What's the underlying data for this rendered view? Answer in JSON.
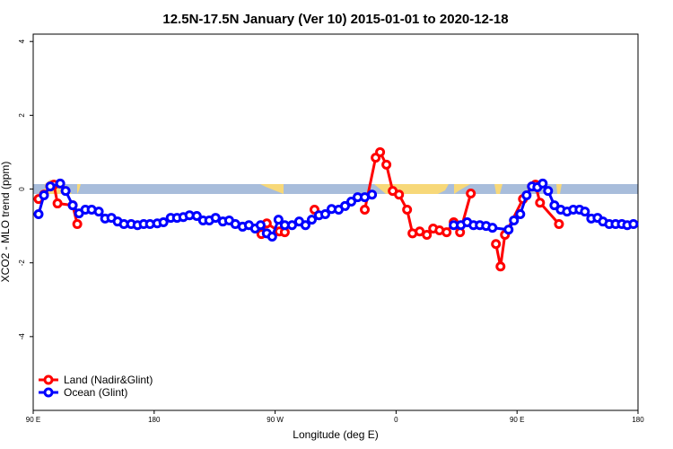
{
  "chart_data": {
    "type": "line",
    "title": "12.5N-17.5N January (Ver 10)   2015-01-01 to 2020-12-18",
    "xlabel": "Longitude (deg E)",
    "ylabel": "XCO2 - MLO trend (ppm)",
    "xlim": [
      90,
      540
    ],
    "ylim": [
      -6,
      4.2
    ],
    "xticks": [
      {
        "value": 90,
        "label": "90 E"
      },
      180,
      {
        "value": 270,
        "label": "90 W"
      },
      {
        "value": 360,
        "label": "0"
      },
      {
        "value": 450,
        "label": "90 E"
      },
      {
        "value": 540,
        "label": "180"
      }
    ],
    "yticks": [
      -4,
      -2,
      0,
      2,
      4
    ],
    "legend": "bottomleft",
    "series": [
      {
        "name": "Land (Nadir&Glint)",
        "color": "#ff0000",
        "x": [
          94.0,
          98.0,
          102.7,
          105.4,
          108.1,
          119.4,
          122.8,
          190,
          259.8,
          263.8,
          273.2,
          277.2,
          288,
          299.3,
          318,
          336.7,
          344.8,
          348.1,
          352.8,
          357.5,
          362.2,
          368.2,
          372.2,
          377.6,
          382.9,
          387.6,
          392.3,
          397.6,
          402.9,
          407.6,
          415.6,
          425,
          434.3,
          437.7,
          441.0,
          454.4,
          461.1,
          463.7,
          467.1,
          481.2
        ],
        "values": [
          -0.27,
          -0.15,
          0.07,
          0.12,
          -0.39,
          -0.44,
          -0.95,
          null,
          -1.22,
          -0.93,
          -1.15,
          -1.17,
          null,
          -0.56,
          null,
          -0.56,
          0.85,
          1.0,
          0.66,
          -0.05,
          -0.15,
          -0.56,
          -1.2,
          -1.15,
          -1.24,
          -1.07,
          -1.12,
          -1.17,
          -0.9,
          -1.17,
          -0.12,
          null,
          -1.49,
          -2.1,
          -1.24,
          -0.27,
          0.07,
          0.12,
          -0.37,
          -0.95
        ]
      },
      {
        "name": "Ocean (Glint)",
        "color": "#0000ff",
        "x": [
          94.0,
          98.0,
          102.7,
          110.1,
          114.1,
          119.4,
          124.1,
          128.8,
          133.5,
          138.8,
          143.5,
          148.2,
          152.8,
          157.5,
          162.9,
          167.6,
          172.2,
          176.9,
          182.3,
          186.9,
          192.3,
          197.0,
          201.7,
          206.3,
          211.7,
          216.4,
          221.0,
          225.7,
          231.1,
          235.8,
          240.4,
          245.8,
          250.5,
          255.1,
          259.2,
          263.8,
          267.8,
          272.5,
          277.2,
          282.6,
          287.9,
          292.6,
          297.3,
          302.6,
          307.3,
          312.0,
          317.3,
          322.0,
          326.7,
          331.4,
          336.7,
          342.1,
          372,
          402.9,
          408.2,
          412.9,
          417.6,
          422.3,
          427.0,
          431.7,
          443.7,
          447.7,
          452.4,
          457.1,
          461.1,
          465.1,
          469.1,
          473.1,
          477.8,
          482.5,
          487.2,
          491.8,
          496.5,
          500.5,
          505.2,
          509.9,
          513.9,
          518.6,
          523.3,
          528.0,
          532.0,
          536.6
        ],
        "values": [
          -0.68,
          -0.17,
          0.07,
          0.15,
          -0.05,
          -0.44,
          -0.66,
          -0.56,
          -0.56,
          -0.61,
          -0.8,
          -0.78,
          -0.88,
          -0.95,
          -0.95,
          -0.98,
          -0.95,
          -0.95,
          -0.93,
          -0.9,
          -0.78,
          -0.78,
          -0.76,
          -0.71,
          -0.73,
          -0.85,
          -0.85,
          -0.78,
          -0.88,
          -0.85,
          -0.95,
          -1.02,
          -0.98,
          -1.07,
          -0.98,
          -1.2,
          -1.29,
          -0.83,
          -0.98,
          -0.98,
          -0.88,
          -0.98,
          -0.83,
          -0.71,
          -0.68,
          -0.54,
          -0.56,
          -0.46,
          -0.34,
          -0.22,
          -0.22,
          -0.15,
          null,
          -0.98,
          -0.98,
          -0.9,
          -0.98,
          -0.98,
          -1.0,
          -1.05,
          -1.1,
          -0.85,
          -0.68,
          -0.17,
          0.07,
          0.05,
          0.15,
          -0.05,
          -0.44,
          -0.56,
          -0.61,
          -0.56,
          -0.56,
          -0.61,
          -0.8,
          -0.78,
          -0.88,
          -0.95,
          -0.95,
          -0.95,
          -0.98,
          -0.95
        ]
      }
    ]
  }
}
